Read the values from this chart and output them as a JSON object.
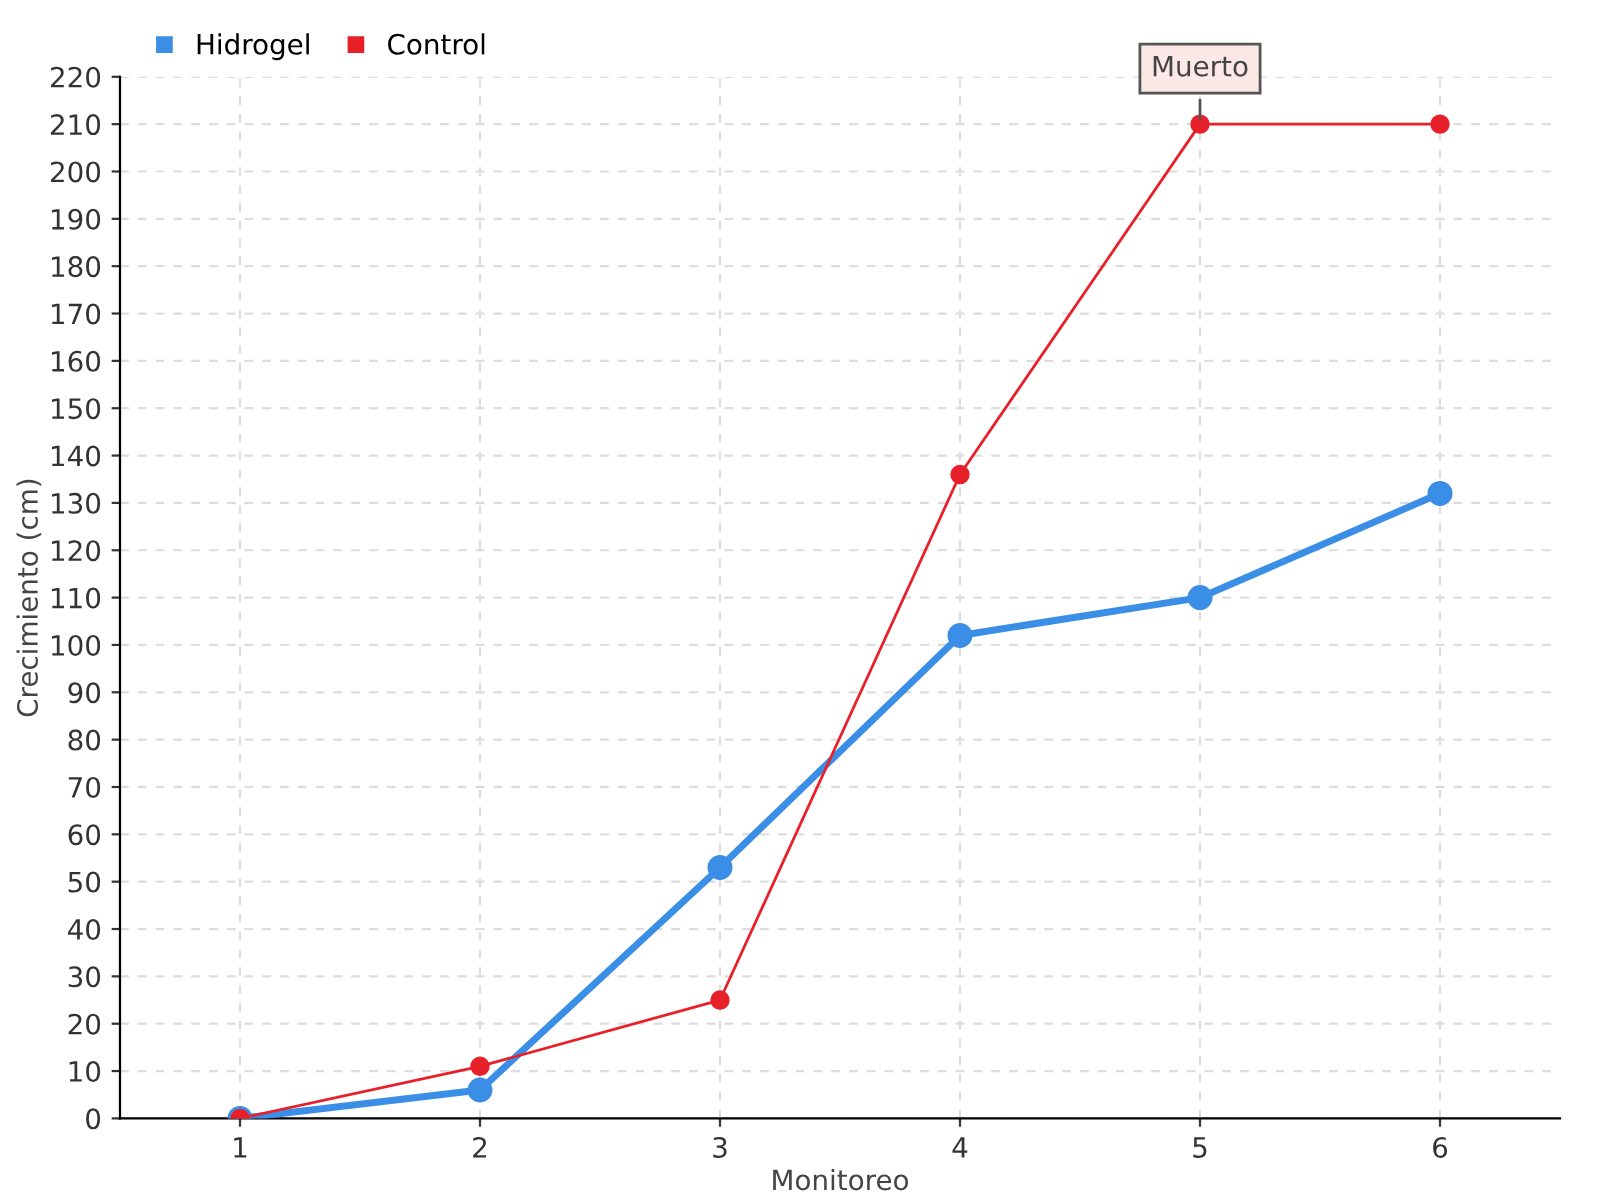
{
  "chart_data": {
    "type": "line",
    "xlabel": "Monitoreo",
    "ylabel": "Crecimiento (cm)",
    "x": [
      1,
      2,
      3,
      4,
      5,
      6
    ],
    "series": [
      {
        "name": "Hidrogel",
        "color": "#3a8ee6",
        "values": [
          0,
          6,
          53,
          102,
          110,
          132
        ]
      },
      {
        "name": "Control",
        "color": "#e8202a",
        "values": [
          0,
          11,
          25,
          136,
          210,
          210
        ]
      }
    ],
    "xlim": [
      0.5,
      6.5
    ],
    "xticks": [
      1,
      2,
      3,
      4,
      5,
      6
    ],
    "ylim": [
      0,
      220
    ],
    "yticks": [
      0,
      10,
      20,
      30,
      40,
      50,
      60,
      70,
      80,
      90,
      100,
      110,
      120,
      130,
      140,
      150,
      160,
      170,
      180,
      190,
      200,
      210,
      220
    ],
    "annotations": [
      {
        "text": "Muerto",
        "x": 5,
        "y": 210
      }
    ],
    "grid": true,
    "legend": "top left",
    "marker": "circle",
    "line_style": "solid"
  }
}
